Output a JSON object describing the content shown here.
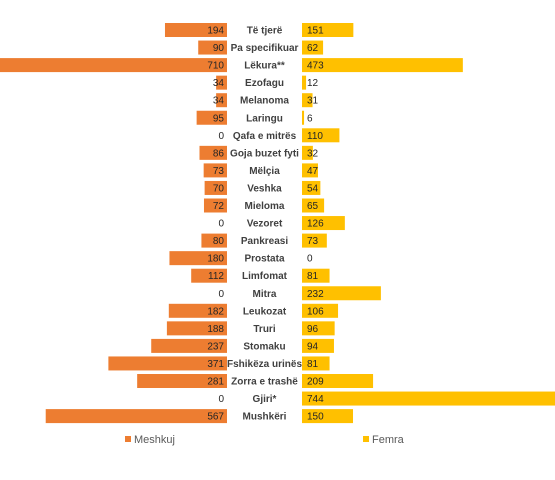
{
  "chart_data": {
    "type": "bar",
    "orientation": "horizontal-butterfly",
    "categories": [
      "Të tjerë",
      "Pa specifikuar",
      "Lëkura**",
      "Ezofagu",
      "Melanoma",
      "Laringu",
      "Qafa e mitrës",
      "Goja buzet fyti",
      "Mëlçia",
      "Veshka",
      "Mieloma",
      "Vezoret",
      "Pankreasi",
      "Prostata",
      "Limfomat",
      "Mitra",
      "Leukozat",
      "Truri",
      "Stomaku",
      "Fshikëza urinës",
      "Zorra e trashë",
      "Gjiri*",
      "Mushkëri"
    ],
    "series": [
      {
        "name": "Meshkuj",
        "color": "#ED7D31",
        "values": [
          194,
          90,
          710,
          34,
          34,
          95,
          0,
          86,
          73,
          70,
          72,
          0,
          80,
          180,
          112,
          0,
          182,
          188,
          237,
          371,
          281,
          0,
          567
        ]
      },
      {
        "name": "Femra",
        "color": "#FFC000",
        "values": [
          151,
          62,
          473,
          12,
          31,
          6,
          110,
          32,
          47,
          54,
          65,
          126,
          73,
          0,
          81,
          232,
          106,
          96,
          94,
          81,
          209,
          744,
          150
        ]
      }
    ],
    "legend_position": "bottom",
    "grid": false
  }
}
